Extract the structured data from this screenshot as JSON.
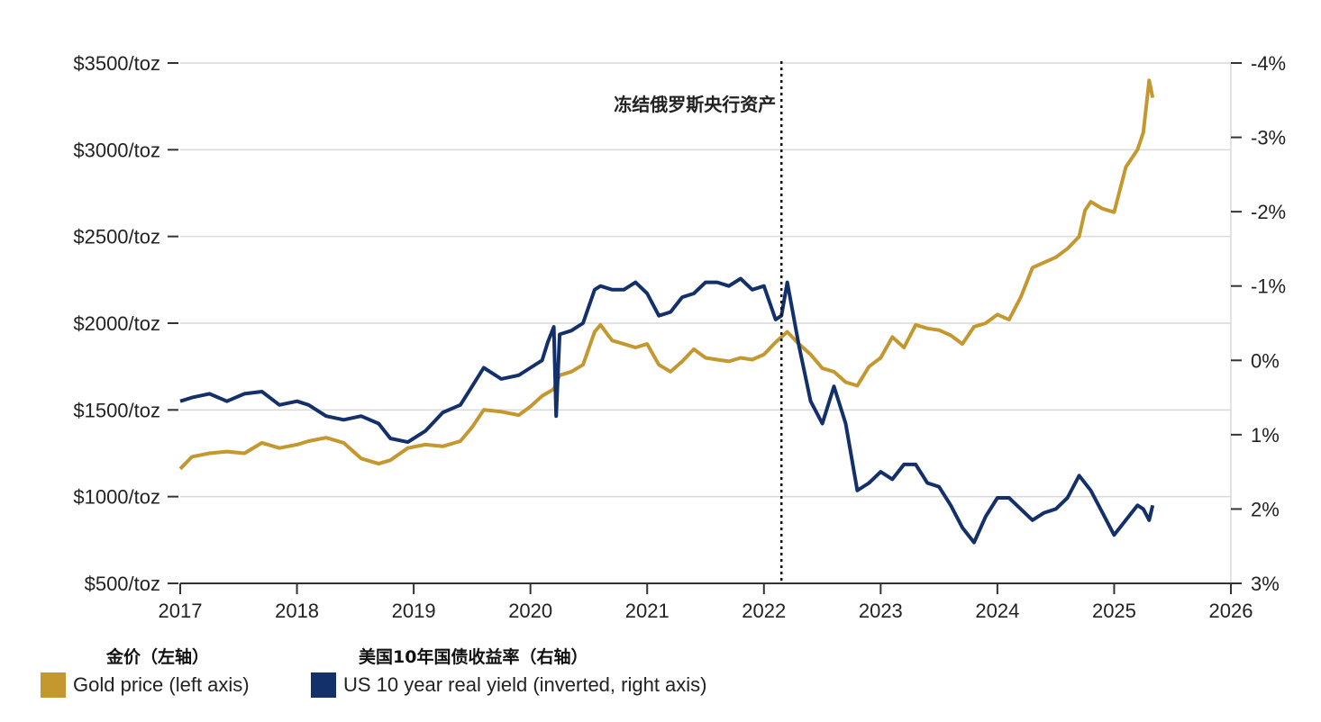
{
  "chart_data": {
    "type": "line",
    "x_ticks": [
      "2017",
      "2018",
      "2019",
      "2020",
      "2021",
      "2022",
      "2023",
      "2024",
      "2025",
      "2026"
    ],
    "xlim": [
      2017,
      2026
    ],
    "left_axis": {
      "ticks": [
        500,
        1000,
        1500,
        2000,
        2500,
        3000,
        3500
      ],
      "tick_labels": [
        "$500/toz",
        "$1000/toz",
        "$1500/toz",
        "$2000/toz",
        "$2500/toz",
        "$3000/toz",
        "$3500/toz"
      ],
      "range": [
        500,
        3500
      ]
    },
    "right_axis": {
      "inverted": true,
      "ticks": [
        3,
        2,
        1,
        0,
        -1,
        -2,
        -3,
        -4
      ],
      "tick_labels": [
        "3%",
        "2%",
        "1%",
        "0%",
        "-1%",
        "-2%",
        "-3%",
        "-4%"
      ],
      "range": [
        3,
        -4
      ]
    },
    "grid": true,
    "annotation": {
      "x": 2022.15,
      "label": "冻结俄罗斯央行资产"
    },
    "series": [
      {
        "name": "Gold price (left axis)",
        "name_cn": "金价（左轴）",
        "axis": "left",
        "color": "#C4972F",
        "x": [
          2017.0,
          2017.1,
          2017.25,
          2017.4,
          2017.55,
          2017.7,
          2017.85,
          2018.0,
          2018.1,
          2018.25,
          2018.4,
          2018.55,
          2018.7,
          2018.8,
          2018.95,
          2019.1,
          2019.25,
          2019.4,
          2019.5,
          2019.6,
          2019.75,
          2019.9,
          2020.0,
          2020.1,
          2020.2,
          2020.25,
          2020.35,
          2020.45,
          2020.55,
          2020.6,
          2020.7,
          2020.8,
          2020.9,
          2021.0,
          2021.1,
          2021.2,
          2021.3,
          2021.4,
          2021.5,
          2021.6,
          2021.7,
          2021.8,
          2021.9,
          2022.0,
          2022.1,
          2022.2,
          2022.3,
          2022.4,
          2022.5,
          2022.6,
          2022.7,
          2022.8,
          2022.9,
          2023.0,
          2023.1,
          2023.2,
          2023.3,
          2023.4,
          2023.5,
          2023.6,
          2023.7,
          2023.8,
          2023.9,
          2024.0,
          2024.1,
          2024.2,
          2024.3,
          2024.4,
          2024.5,
          2024.6,
          2024.7,
          2024.75,
          2024.8,
          2024.9,
          2025.0,
          2025.1,
          2025.2,
          2025.25,
          2025.3,
          2025.33
        ],
        "values": [
          1160,
          1230,
          1250,
          1260,
          1250,
          1310,
          1280,
          1300,
          1320,
          1340,
          1310,
          1220,
          1190,
          1210,
          1280,
          1300,
          1290,
          1320,
          1400,
          1500,
          1490,
          1470,
          1520,
          1580,
          1620,
          1700,
          1720,
          1760,
          1950,
          1990,
          1900,
          1880,
          1860,
          1880,
          1760,
          1720,
          1780,
          1850,
          1800,
          1790,
          1780,
          1800,
          1790,
          1820,
          1890,
          1950,
          1880,
          1820,
          1740,
          1720,
          1660,
          1640,
          1750,
          1800,
          1920,
          1860,
          1990,
          1970,
          1960,
          1930,
          1880,
          1980,
          2000,
          2050,
          2020,
          2150,
          2320,
          2350,
          2380,
          2430,
          2500,
          2650,
          2700,
          2660,
          2640,
          2900,
          3000,
          3100,
          3400,
          3300
        ]
      },
      {
        "name": "US 10 year real yield (inverted, right axis)",
        "name_cn": "美国10年国债收益率（右轴）",
        "axis": "right",
        "color": "#14306B",
        "x": [
          2017.0,
          2017.1,
          2017.25,
          2017.4,
          2017.55,
          2017.7,
          2017.85,
          2018.0,
          2018.1,
          2018.25,
          2018.4,
          2018.55,
          2018.7,
          2018.8,
          2018.95,
          2019.1,
          2019.25,
          2019.4,
          2019.5,
          2019.6,
          2019.75,
          2019.9,
          2020.0,
          2020.1,
          2020.15,
          2020.2,
          2020.22,
          2020.25,
          2020.35,
          2020.45,
          2020.55,
          2020.6,
          2020.7,
          2020.8,
          2020.9,
          2021.0,
          2021.1,
          2021.2,
          2021.3,
          2021.4,
          2021.5,
          2021.6,
          2021.7,
          2021.8,
          2021.9,
          2022.0,
          2022.1,
          2022.15,
          2022.2,
          2022.3,
          2022.4,
          2022.5,
          2022.6,
          2022.7,
          2022.8,
          2022.9,
          2023.0,
          2023.1,
          2023.2,
          2023.3,
          2023.4,
          2023.5,
          2023.6,
          2023.7,
          2023.8,
          2023.9,
          2024.0,
          2024.1,
          2024.2,
          2024.3,
          2024.4,
          2024.5,
          2024.6,
          2024.7,
          2024.8,
          2024.9,
          2025.0,
          2025.1,
          2025.2,
          2025.25,
          2025.3,
          2025.33
        ],
        "values": [
          0.55,
          0.5,
          0.45,
          0.55,
          0.45,
          0.42,
          0.6,
          0.55,
          0.6,
          0.75,
          0.8,
          0.75,
          0.85,
          1.05,
          1.1,
          0.95,
          0.7,
          0.6,
          0.35,
          0.1,
          0.25,
          0.2,
          0.1,
          0.0,
          -0.25,
          -0.45,
          0.75,
          -0.35,
          -0.4,
          -0.5,
          -0.95,
          -1.0,
          -0.95,
          -0.95,
          -1.05,
          -0.9,
          -0.6,
          -0.65,
          -0.85,
          -0.9,
          -1.05,
          -1.05,
          -1.0,
          -1.1,
          -0.95,
          -1.0,
          -0.55,
          -0.6,
          -1.05,
          -0.2,
          0.55,
          0.85,
          0.35,
          0.85,
          1.75,
          1.65,
          1.5,
          1.6,
          1.4,
          1.4,
          1.65,
          1.7,
          1.95,
          2.25,
          2.45,
          2.1,
          1.85,
          1.85,
          2.0,
          2.15,
          2.05,
          2.0,
          1.85,
          1.55,
          1.75,
          2.05,
          2.35,
          2.15,
          1.95,
          2.0,
          2.15,
          1.95
        ]
      }
    ]
  },
  "legend_cn": {
    "gold": "金价（左轴）",
    "yield": "美国10年国债收益率（右轴）"
  },
  "legend_en": {
    "gold": "Gold price (left axis)",
    "yield": "US 10 year real yield (inverted, right axis)"
  },
  "colors": {
    "gold": "#C4972F",
    "yield": "#14306B",
    "grid": "#d9d9d9"
  }
}
